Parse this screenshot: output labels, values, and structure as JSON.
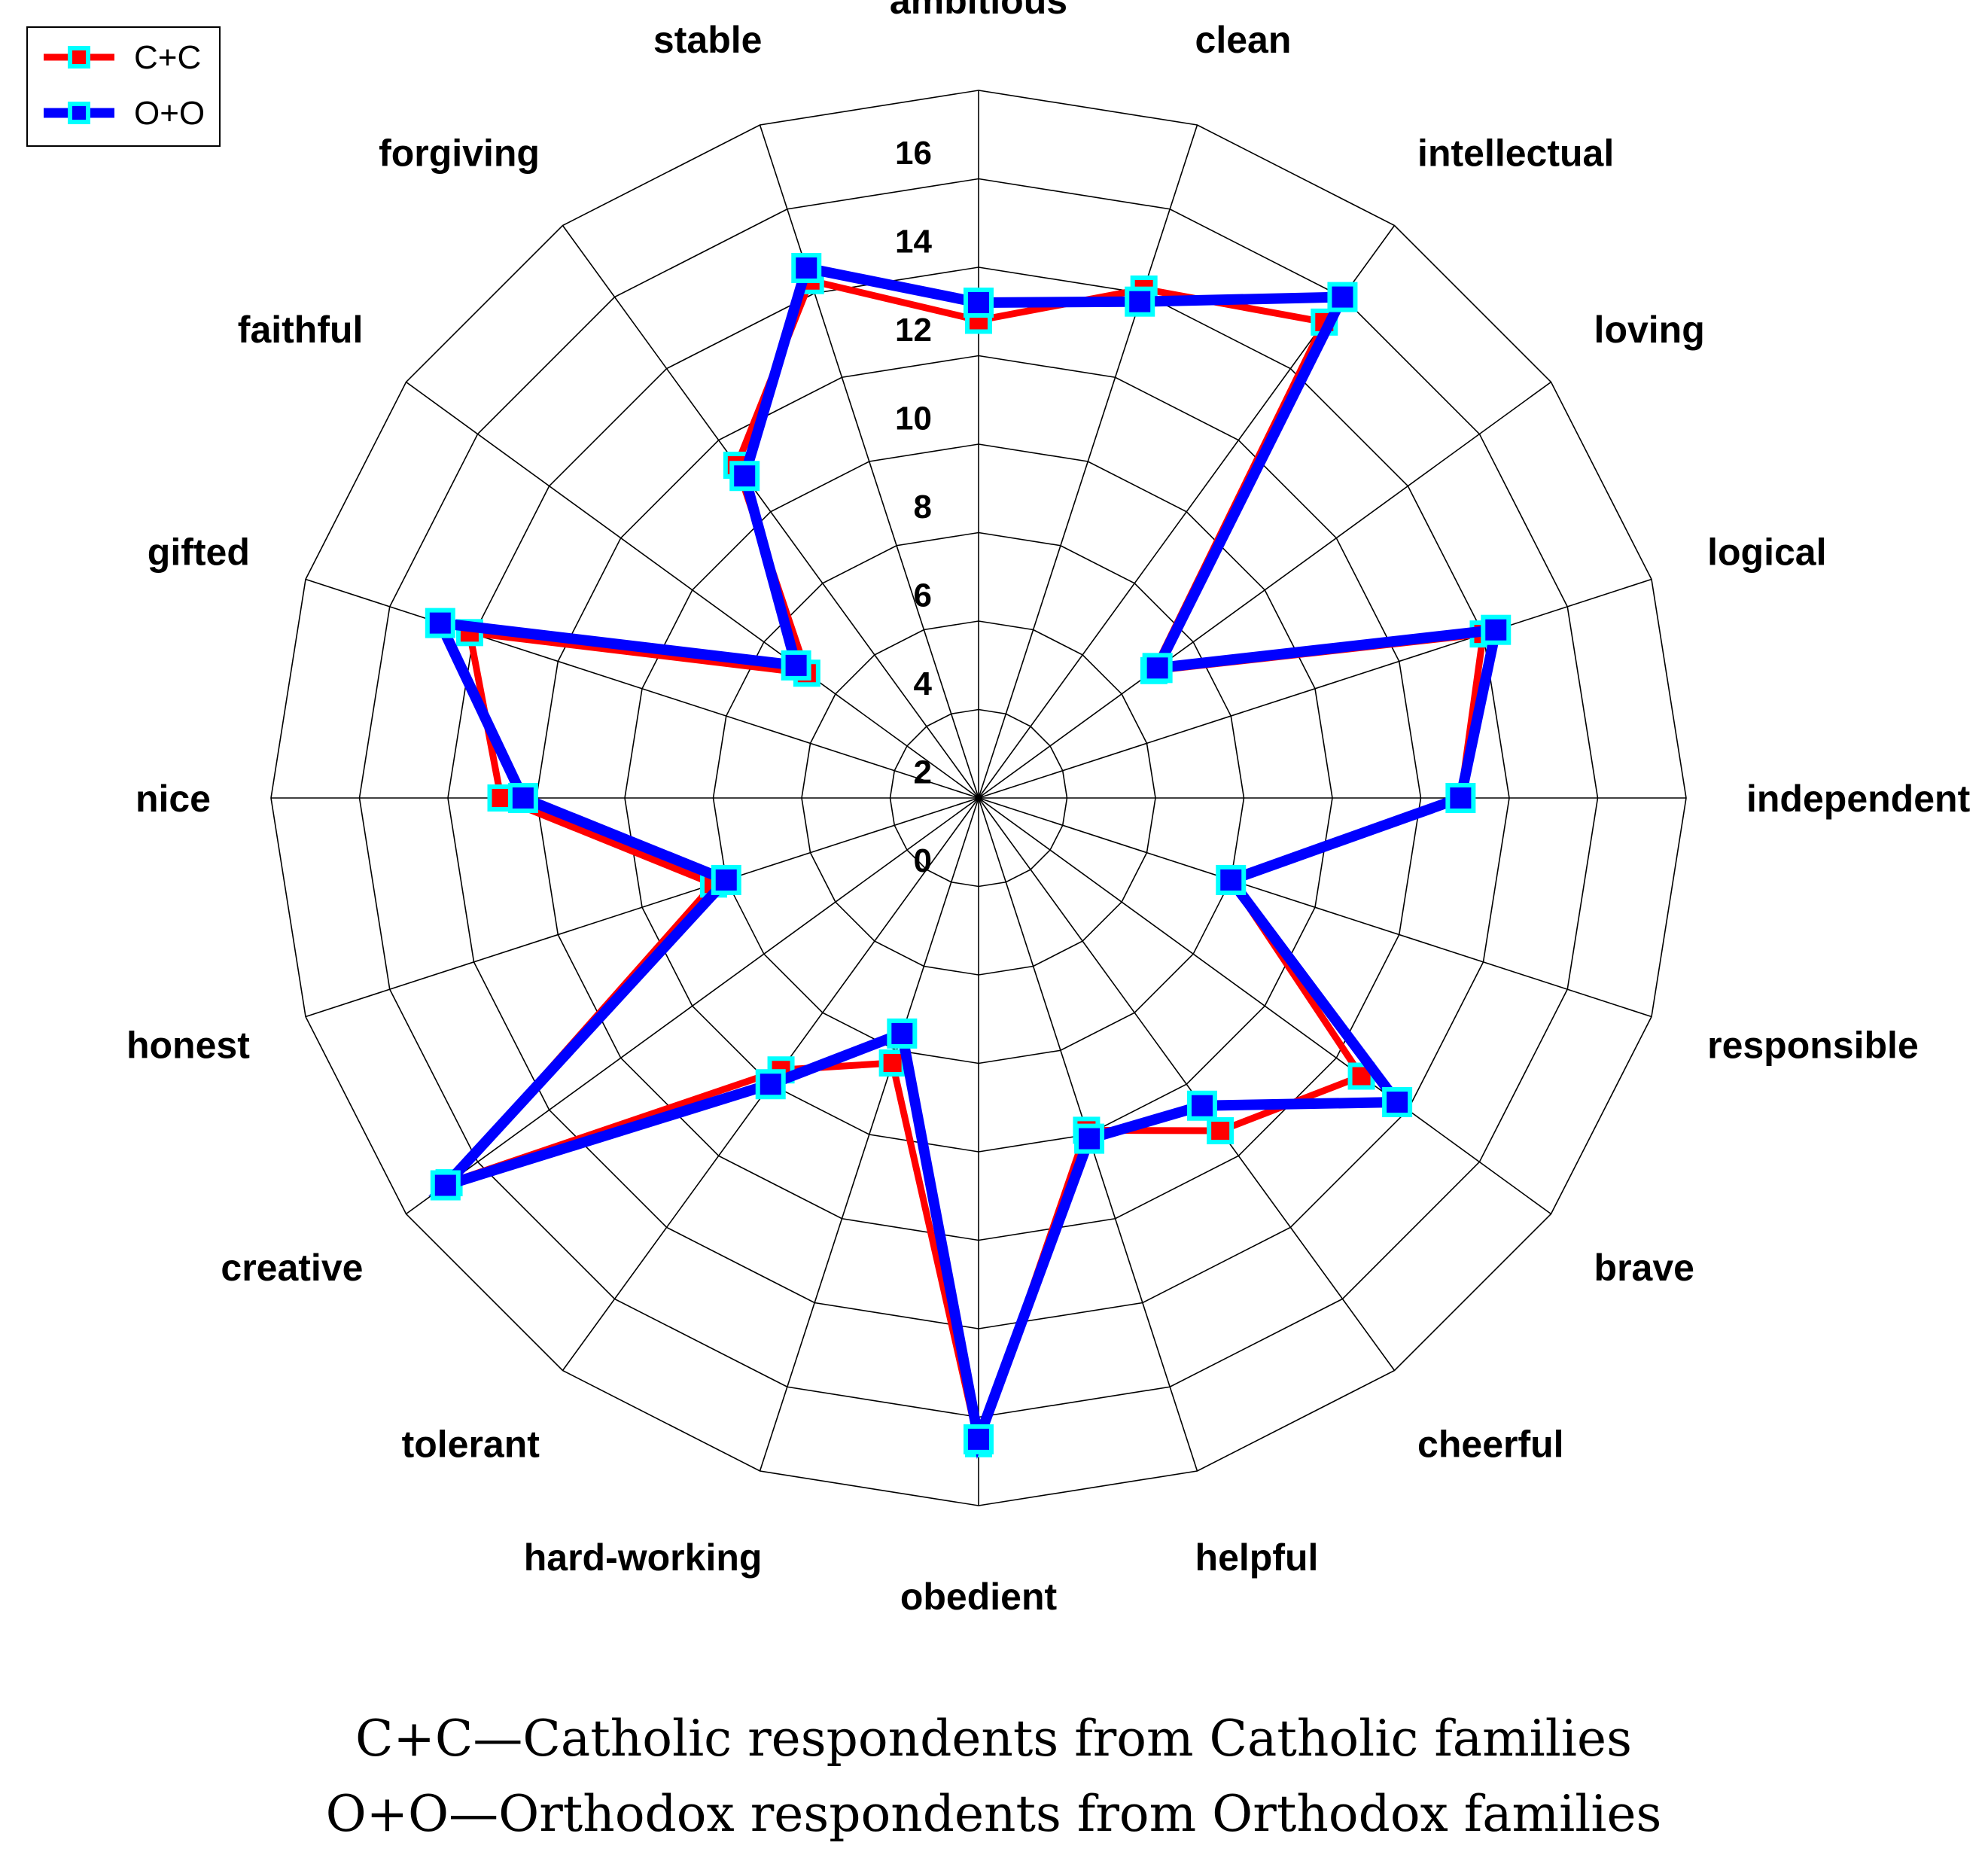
{
  "chart_data": {
    "type": "radar",
    "categories": [
      "ambitious",
      "clean",
      "intellectual",
      "loving",
      "logical",
      "independent",
      "responsible",
      "brave",
      "cheerful",
      "helpful",
      "obedient",
      "hard-working",
      "tolerant",
      "creative",
      "honest",
      "nice",
      "gifted",
      "faithful",
      "forgiving",
      "stable"
    ],
    "rlim": [
      0,
      16
    ],
    "ticks": [
      0,
      2,
      4,
      6,
      8,
      10,
      12,
      14,
      16
    ],
    "series": [
      {
        "name": "C+C",
        "color": "#ff0000",
        "values": [
          10.8,
          12.1,
          13.3,
          4.9,
          12.0,
          10.9,
          6.0,
          10.7,
          9.3,
          7.9,
          14.6,
          6.3,
          7.6,
          14.8,
          6.3,
          10.8,
          12.1,
          4.8,
          9.3,
          12.3
        ]
      },
      {
        "name": "O+O",
        "color": "#0000ff",
        "values": [
          11.2,
          11.8,
          14.0,
          5.0,
          12.3,
          10.9,
          6.0,
          11.7,
          8.6,
          8.1,
          14.5,
          5.6,
          8.0,
          14.9,
          6.0,
          10.3,
          12.8,
          5.1,
          9.0,
          12.6
        ]
      }
    ],
    "marker_fill_color": "#00ffff",
    "grid": true,
    "legend_position": "top-left"
  },
  "legend": {
    "items": [
      {
        "label": "C+C",
        "color": "#ff0000"
      },
      {
        "label": "O+O",
        "color": "#0000ff"
      }
    ]
  },
  "caption": {
    "line1": "C+C—Catholic respondents from Catholic families",
    "line2": "O+O—Orthodox respondents from Orthodox families"
  }
}
